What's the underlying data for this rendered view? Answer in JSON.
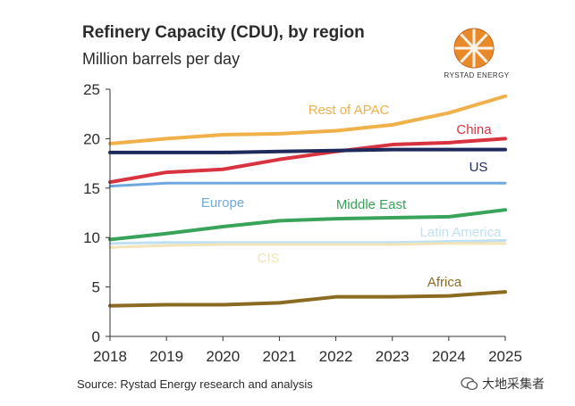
{
  "title": "Refinery Capacity (CDU), by region",
  "subtitle": "Million barrels per day",
  "logo_text": "RYSTAD ENERGY",
  "source": "Source: Rystad Energy research and analysis",
  "watermark": "大地采集者",
  "colors": {
    "rest_of_apac": "#F0B04A",
    "china": "#D8343F",
    "us": "#1F2A5C",
    "europe": "#6FA8E0",
    "middle_east": "#3AA35A",
    "latin_america": "#BFE0F2",
    "cis": "#F3E3B8",
    "africa": "#8B6A22"
  },
  "chart_data": {
    "type": "line",
    "x": [
      "2018",
      "2019",
      "2020",
      "2021",
      "2022",
      "2023",
      "2024",
      "2025"
    ],
    "ylim": [
      0,
      25
    ],
    "yticks": [
      "0",
      "5",
      "10",
      "15",
      "20",
      "25"
    ],
    "grid": false,
    "series": [
      {
        "name": "Rest of APAC",
        "values": [
          19.5,
          20.0,
          20.4,
          20.5,
          20.8,
          21.4,
          22.6,
          24.3
        ]
      },
      {
        "name": "China",
        "values": [
          15.6,
          16.6,
          16.9,
          17.9,
          18.7,
          19.4,
          19.6,
          20.0
        ]
      },
      {
        "name": "US",
        "values": [
          18.6,
          18.6,
          18.6,
          18.7,
          18.8,
          18.9,
          18.9,
          18.9
        ]
      },
      {
        "name": "Europe",
        "values": [
          15.2,
          15.5,
          15.5,
          15.5,
          15.5,
          15.5,
          15.5,
          15.5
        ]
      },
      {
        "name": "Middle East",
        "values": [
          9.8,
          10.4,
          11.1,
          11.7,
          11.9,
          12.0,
          12.1,
          12.8
        ]
      },
      {
        "name": "Latin America",
        "values": [
          9.4,
          9.5,
          9.5,
          9.5,
          9.5,
          9.5,
          9.6,
          9.7
        ]
      },
      {
        "name": "CIS",
        "values": [
          9.0,
          9.2,
          9.3,
          9.3,
          9.3,
          9.3,
          9.4,
          9.4
        ]
      },
      {
        "name": "Africa",
        "values": [
          3.1,
          3.2,
          3.2,
          3.4,
          4.0,
          4.0,
          4.1,
          4.5
        ]
      }
    ]
  }
}
